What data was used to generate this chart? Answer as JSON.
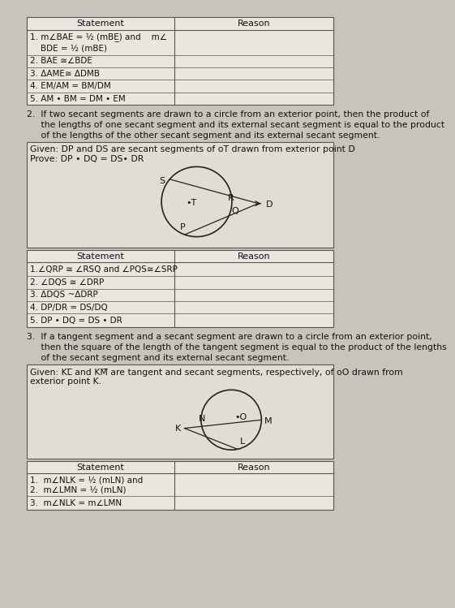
{
  "bg_color": "#c8c4bc",
  "section1_table": {
    "header": [
      "Statement",
      "Reason"
    ],
    "rows": [
      [
        "1. m∠BAE = ½ (mBE̲) and    m∠\n    BDE = ½ (mBE)",
        ""
      ],
      [
        "2. BAE ≅∠BDE",
        ""
      ],
      [
        "3. ΔAME≅ ΔDMB",
        ""
      ],
      [
        "4. EM/AM = BM/DM",
        ""
      ],
      [
        "5. AM • BM = DM • EM",
        ""
      ]
    ]
  },
  "section2_text": "2.  If two secant segments are drawn to a circle from an exterior point, then the product of\n     the lengths of one secant segment and its external secant segment is equal to the product\n     of the lengths of the other secant segment and its external secant segment.",
  "section2_given": "Given: DP and DS are secant segments of oT drawn from exterior point D",
  "section2_prove": "Prove: DP • DQ = DS• DR",
  "section2_table": {
    "header": [
      "Statement",
      "Reason"
    ],
    "rows": [
      [
        "1.∠QRP ≅ ∠RSQ and ∠PQS≅∠SRP",
        ""
      ],
      [
        "2. ∠DQS ≅ ∠DRP",
        ""
      ],
      [
        "3. ΔDQS ~ΔDRP",
        ""
      ],
      [
        "4. DP/DR = DS/DQ",
        ""
      ],
      [
        "5. DP • DQ = DS • DR",
        ""
      ]
    ]
  },
  "section3_text": "3.  If a tangent segment and a secant segment are drawn to a circle from an exterior point,\n     then the square of the length of the tangent segment is equal to the product of the lengths\n     of the secant segment and its external secant segment.",
  "section3_given": "Given: KL̅ and KM̅ are tangent and secant segments, respectively, of oO drawn from\nexterior point K.",
  "section3_table": {
    "header": [
      "Statement",
      "Reason"
    ],
    "rows": [
      [
        "1.  m∠NLK = ½ (mLN) and\n2.  m∠LMN = ½ (mLN)",
        ""
      ],
      [
        "3.  m∠NLK = m∠LMN",
        ""
      ]
    ]
  }
}
